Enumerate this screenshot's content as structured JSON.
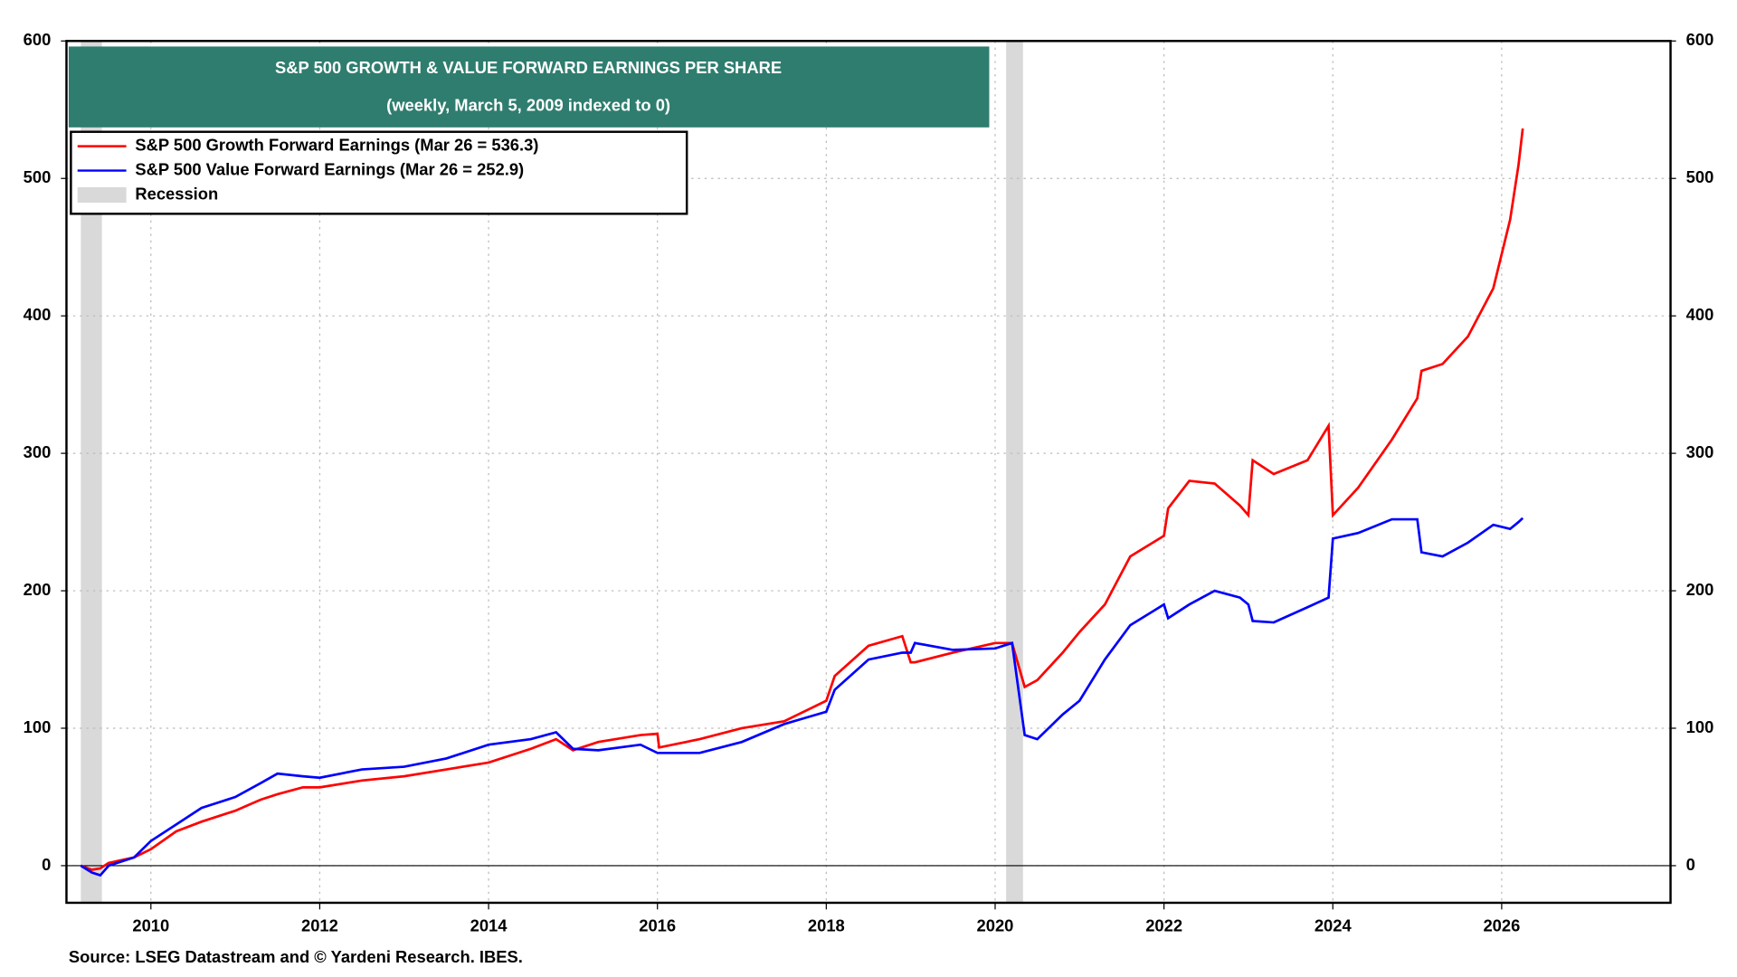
{
  "chart_data": {
    "type": "line",
    "title": "S&P 500 GROWTH & VALUE FORWARD EARNINGS PER SHARE",
    "subtitle": "(weekly, March 5, 2009 indexed to 0)",
    "source": "Source: LSEG Datastream and © Yardeni Research. IBES.",
    "x": [
      2009.17,
      2009.3,
      2009.4,
      2009.5,
      2009.8,
      2010.0,
      2010.3,
      2010.6,
      2011.0,
      2011.3,
      2011.5,
      2011.8,
      2012.0,
      2012.5,
      2013.0,
      2013.5,
      2014.0,
      2014.5,
      2014.8,
      2015.0,
      2015.3,
      2015.8,
      2016.0,
      2016.02,
      2016.5,
      2017.0,
      2017.5,
      2018.0,
      2018.1,
      2018.5,
      2018.9,
      2019.0,
      2019.05,
      2019.5,
      2020.0,
      2020.2,
      2020.35,
      2020.5,
      2020.8,
      2021.0,
      2021.3,
      2021.6,
      2022.0,
      2022.05,
      2022.3,
      2022.6,
      2022.9,
      2023.0,
      2023.05,
      2023.3,
      2023.7,
      2023.95,
      2024.0,
      2024.3,
      2024.7,
      2025.0,
      2025.05,
      2025.3,
      2025.6,
      2025.9,
      2026.1,
      2026.2,
      2026.25
    ],
    "series": [
      {
        "name": "S&P 500 Growth Forward Earnings (Mar 26 = 536.3)",
        "color": "#ff0000",
        "values": [
          0,
          -3,
          -2,
          2,
          6,
          12,
          25,
          32,
          40,
          48,
          52,
          57,
          57,
          62,
          65,
          70,
          75,
          85,
          92,
          84,
          90,
          95,
          96,
          86,
          92,
          100,
          105,
          120,
          138,
          160,
          167,
          148,
          148,
          155,
          162,
          162,
          130,
          135,
          155,
          170,
          190,
          225,
          240,
          260,
          280,
          278,
          262,
          255,
          295,
          285,
          295,
          320,
          255,
          275,
          310,
          340,
          360,
          365,
          385,
          420,
          470,
          510,
          536.3
        ]
      },
      {
        "name": "S&P 500 Value Forward Earnings (Mar 26 = 252.9)",
        "color": "#0000ff",
        "values": [
          0,
          -5,
          -7,
          0,
          6,
          18,
          30,
          42,
          50,
          60,
          67,
          65,
          64,
          70,
          72,
          78,
          88,
          92,
          97,
          85,
          84,
          88,
          82,
          82,
          82,
          90,
          103,
          112,
          128,
          150,
          155,
          155,
          162,
          157,
          158,
          162,
          95,
          92,
          110,
          120,
          150,
          175,
          190,
          180,
          190,
          200,
          195,
          190,
          178,
          177,
          188,
          195,
          238,
          242,
          252,
          252,
          228,
          225,
          235,
          248,
          245,
          250,
          252.9
        ]
      }
    ],
    "recession_label": "Recession",
    "recessions": [
      [
        2009.17,
        2009.42
      ],
      [
        2020.13,
        2020.33
      ]
    ],
    "xlim": [
      2009,
      2028
    ],
    "xticks": [
      2010,
      2012,
      2014,
      2016,
      2018,
      2020,
      2022,
      2024,
      2026
    ],
    "ylim": [
      -27,
      600
    ],
    "yticks": [
      0,
      100,
      200,
      300,
      400,
      500,
      600
    ],
    "y2lim": [
      -27,
      600
    ],
    "y2ticks": [
      0,
      100,
      200,
      300,
      400,
      500,
      600
    ],
    "grid": true
  }
}
